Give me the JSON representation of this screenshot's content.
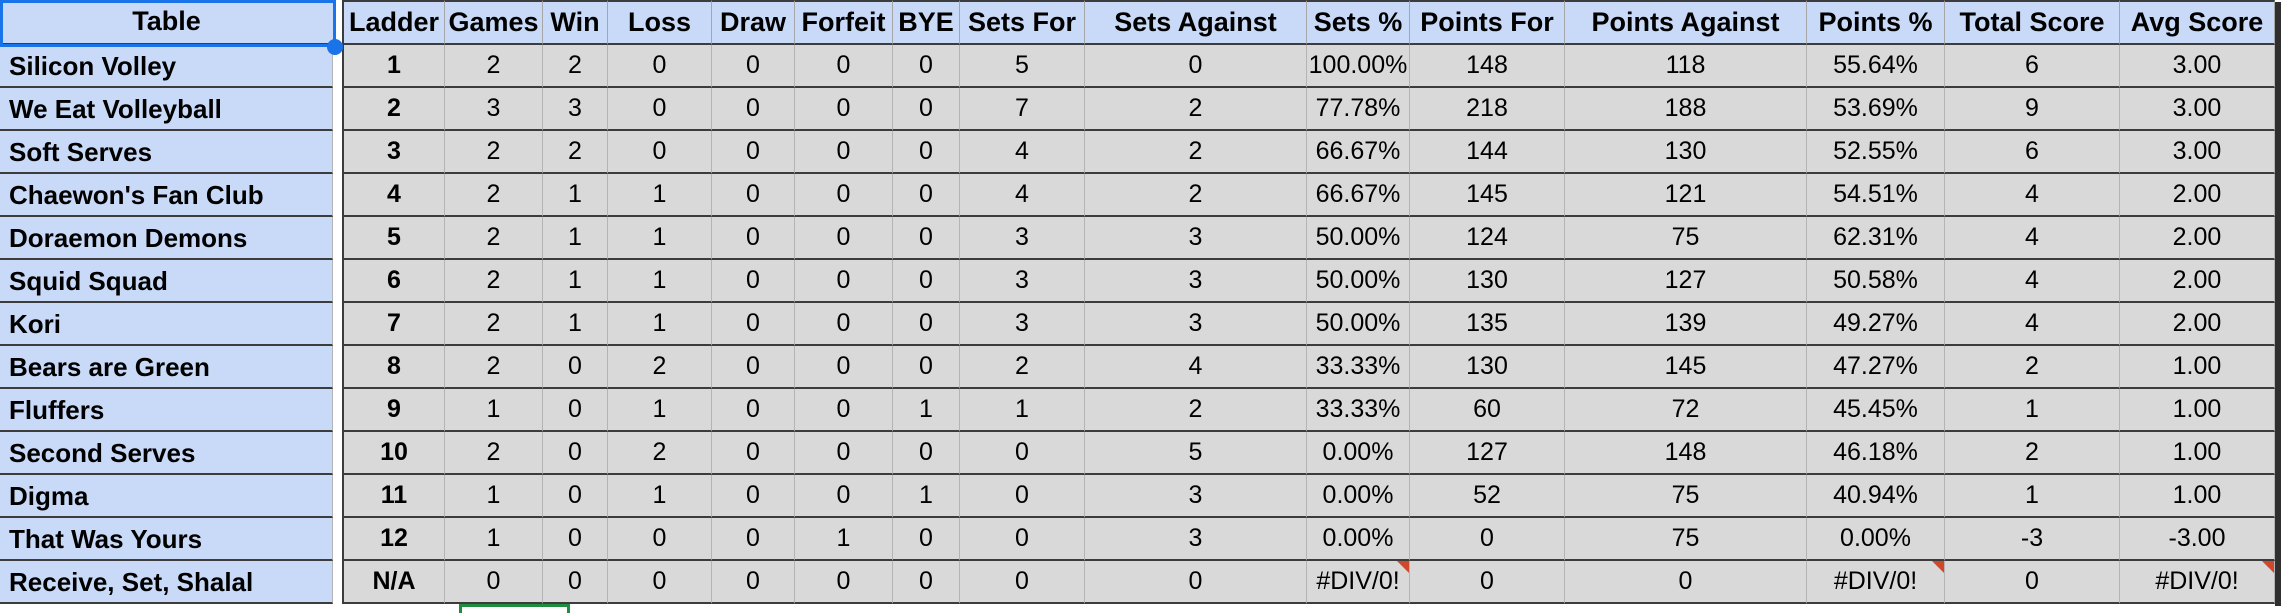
{
  "table": {
    "corner_header": "Table",
    "columns": [
      "Ladder",
      "Games",
      "Win",
      "Loss",
      "Draw",
      "Forfeit",
      "BYE",
      "Sets For",
      "Sets Against",
      "Sets %",
      "Points For",
      "Points Against",
      "Points %",
      "Total Score",
      "Avg Score"
    ],
    "rows": [
      {
        "team": "Silicon Volley",
        "ladder": "1",
        "values": [
          "2",
          "2",
          "0",
          "0",
          "0",
          "0",
          "5",
          "0",
          "100.00%",
          "148",
          "118",
          "55.64%",
          "6",
          "3.00"
        ],
        "error_cells": []
      },
      {
        "team": "We Eat Volleyball",
        "ladder": "2",
        "values": [
          "3",
          "3",
          "0",
          "0",
          "0",
          "0",
          "7",
          "2",
          "77.78%",
          "218",
          "188",
          "53.69%",
          "9",
          "3.00"
        ],
        "error_cells": []
      },
      {
        "team": "Soft Serves",
        "ladder": "3",
        "values": [
          "2",
          "2",
          "0",
          "0",
          "0",
          "0",
          "4",
          "2",
          "66.67%",
          "144",
          "130",
          "52.55%",
          "6",
          "3.00"
        ],
        "error_cells": []
      },
      {
        "team": "Chaewon's Fan Club",
        "ladder": "4",
        "values": [
          "2",
          "1",
          "1",
          "0",
          "0",
          "0",
          "4",
          "2",
          "66.67%",
          "145",
          "121",
          "54.51%",
          "4",
          "2.00"
        ],
        "error_cells": []
      },
      {
        "team": "Doraemon Demons",
        "ladder": "5",
        "values": [
          "2",
          "1",
          "1",
          "0",
          "0",
          "0",
          "3",
          "3",
          "50.00%",
          "124",
          "75",
          "62.31%",
          "4",
          "2.00"
        ],
        "error_cells": []
      },
      {
        "team": "Squid Squad",
        "ladder": "6",
        "values": [
          "2",
          "1",
          "1",
          "0",
          "0",
          "0",
          "3",
          "3",
          "50.00%",
          "130",
          "127",
          "50.58%",
          "4",
          "2.00"
        ],
        "error_cells": []
      },
      {
        "team": "Kori",
        "ladder": "7",
        "values": [
          "2",
          "1",
          "1",
          "0",
          "0",
          "0",
          "3",
          "3",
          "50.00%",
          "135",
          "139",
          "49.27%",
          "4",
          "2.00"
        ],
        "error_cells": []
      },
      {
        "team": "Bears are Green",
        "ladder": "8",
        "values": [
          "2",
          "0",
          "2",
          "0",
          "0",
          "0",
          "2",
          "4",
          "33.33%",
          "130",
          "145",
          "47.27%",
          "2",
          "1.00"
        ],
        "error_cells": []
      },
      {
        "team": "Fluffers",
        "ladder": "9",
        "values": [
          "1",
          "0",
          "1",
          "0",
          "0",
          "1",
          "1",
          "2",
          "33.33%",
          "60",
          "72",
          "45.45%",
          "1",
          "1.00"
        ],
        "error_cells": []
      },
      {
        "team": "Second Serves",
        "ladder": "10",
        "values": [
          "2",
          "0",
          "2",
          "0",
          "0",
          "0",
          "0",
          "5",
          "0.00%",
          "127",
          "148",
          "46.18%",
          "2",
          "1.00"
        ],
        "error_cells": []
      },
      {
        "team": "Digma",
        "ladder": "11",
        "values": [
          "1",
          "0",
          "1",
          "0",
          "0",
          "1",
          "0",
          "3",
          "0.00%",
          "52",
          "75",
          "40.94%",
          "1",
          "1.00"
        ],
        "error_cells": []
      },
      {
        "team": "That Was Yours",
        "ladder": "12",
        "values": [
          "1",
          "0",
          "0",
          "0",
          "1",
          "0",
          "0",
          "3",
          "0.00%",
          "0",
          "75",
          "0.00%",
          "-3",
          "-3.00"
        ],
        "error_cells": []
      },
      {
        "team": "Receive, Set, Shalal",
        "ladder": "N/A",
        "values": [
          "0",
          "0",
          "0",
          "0",
          "0",
          "0",
          "0",
          "0",
          "#DIV/0!",
          "0",
          "0",
          "#DIV/0!",
          "0",
          "#DIV/0!"
        ],
        "error_cells": [
          8,
          11,
          13
        ]
      }
    ]
  },
  "colors": {
    "header_bg": "#c9daf8",
    "cell_bg": "#d9d9d9",
    "grid_dark": "#3c3c3c",
    "grid_light": "#b4b4b4",
    "selection_blue": "#1a73e8",
    "selection_green": "#1e8e3e",
    "error_red": "#d0482b"
  }
}
